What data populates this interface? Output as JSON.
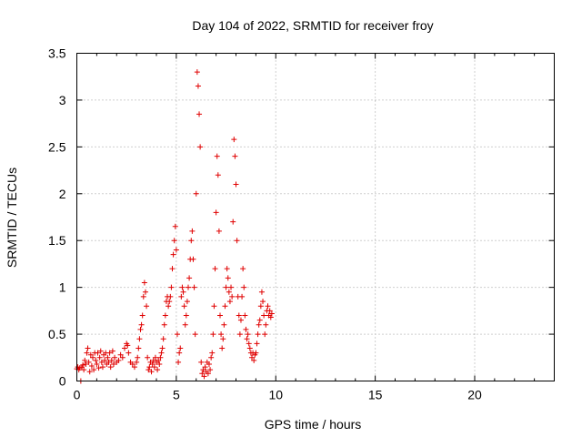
{
  "chart_data": {
    "type": "scatter",
    "title": "Day 104 of 2022, SRMTID for receiver froy",
    "xlabel": "GPS time / hours",
    "ylabel": "SRMTID / TECUs",
    "xlim": [
      0,
      24
    ],
    "ylim": [
      0,
      3.5
    ],
    "x_ticks": [
      0,
      5,
      10,
      15,
      20
    ],
    "x_tick_labels": [
      "0",
      "5",
      "10",
      "15",
      "20"
    ],
    "y_ticks": [
      0,
      0.5,
      1,
      1.5,
      2,
      2.5,
      3,
      3.5
    ],
    "y_tick_labels": [
      "0",
      "0.5",
      "1",
      "1.5",
      "2",
      "2.5",
      "3",
      "3.5"
    ],
    "grid": true,
    "marker": "+",
    "color": "#e00000",
    "series": [
      {
        "name": "SRMTID",
        "points": [
          [
            0.0,
            0.13
          ],
          [
            0.05,
            0.15
          ],
          [
            0.1,
            0.12
          ],
          [
            0.15,
            0.14
          ],
          [
            0.2,
            0.0
          ],
          [
            0.25,
            0.15
          ],
          [
            0.3,
            0.17
          ],
          [
            0.35,
            0.12
          ],
          [
            0.4,
            0.22
          ],
          [
            0.45,
            0.18
          ],
          [
            0.5,
            0.3
          ],
          [
            0.55,
            0.35
          ],
          [
            0.6,
            0.2
          ],
          [
            0.65,
            0.1
          ],
          [
            0.7,
            0.28
          ],
          [
            0.75,
            0.16
          ],
          [
            0.8,
            0.25
          ],
          [
            0.85,
            0.12
          ],
          [
            0.9,
            0.3
          ],
          [
            0.95,
            0.22
          ],
          [
            1.0,
            0.18
          ],
          [
            1.05,
            0.3
          ],
          [
            1.1,
            0.14
          ],
          [
            1.15,
            0.25
          ],
          [
            1.2,
            0.32
          ],
          [
            1.25,
            0.2
          ],
          [
            1.3,
            0.15
          ],
          [
            1.35,
            0.28
          ],
          [
            1.4,
            0.22
          ],
          [
            1.45,
            0.3
          ],
          [
            1.5,
            0.18
          ],
          [
            1.55,
            0.25
          ],
          [
            1.6,
            0.2
          ],
          [
            1.65,
            0.3
          ],
          [
            1.7,
            0.15
          ],
          [
            1.75,
            0.22
          ],
          [
            1.8,
            0.32
          ],
          [
            1.85,
            0.18
          ],
          [
            1.9,
            0.25
          ],
          [
            2.0,
            0.2
          ],
          [
            2.1,
            0.22
          ],
          [
            2.2,
            0.28
          ],
          [
            2.3,
            0.25
          ],
          [
            2.4,
            0.35
          ],
          [
            2.5,
            0.4
          ],
          [
            2.55,
            0.38
          ],
          [
            2.6,
            0.3
          ],
          [
            2.7,
            0.2
          ],
          [
            2.8,
            0.18
          ],
          [
            2.9,
            0.15
          ],
          [
            3.0,
            0.2
          ],
          [
            3.05,
            0.25
          ],
          [
            3.1,
            0.35
          ],
          [
            3.15,
            0.45
          ],
          [
            3.2,
            0.55
          ],
          [
            3.25,
            0.6
          ],
          [
            3.3,
            0.7
          ],
          [
            3.35,
            0.9
          ],
          [
            3.4,
            1.05
          ],
          [
            3.45,
            0.95
          ],
          [
            3.5,
            0.8
          ],
          [
            3.55,
            0.25
          ],
          [
            3.6,
            0.12
          ],
          [
            3.65,
            0.15
          ],
          [
            3.7,
            0.2
          ],
          [
            3.75,
            0.1
          ],
          [
            3.8,
            0.18
          ],
          [
            3.85,
            0.22
          ],
          [
            3.9,
            0.15
          ],
          [
            3.95,
            0.25
          ],
          [
            4.0,
            0.2
          ],
          [
            4.05,
            0.12
          ],
          [
            4.1,
            0.22
          ],
          [
            4.15,
            0.18
          ],
          [
            4.2,
            0.25
          ],
          [
            4.25,
            0.3
          ],
          [
            4.3,
            0.35
          ],
          [
            4.35,
            0.45
          ],
          [
            4.4,
            0.6
          ],
          [
            4.45,
            0.7
          ],
          [
            4.5,
            0.85
          ],
          [
            4.55,
            0.9
          ],
          [
            4.6,
            0.8
          ],
          [
            4.65,
            0.85
          ],
          [
            4.7,
            0.9
          ],
          [
            4.75,
            1.0
          ],
          [
            4.8,
            1.2
          ],
          [
            4.85,
            1.35
          ],
          [
            4.9,
            1.5
          ],
          [
            4.95,
            1.65
          ],
          [
            5.0,
            1.4
          ],
          [
            5.05,
            0.5
          ],
          [
            5.1,
            0.2
          ],
          [
            5.15,
            0.3
          ],
          [
            5.2,
            0.35
          ],
          [
            5.25,
            0.9
          ],
          [
            5.3,
            1.0
          ],
          [
            5.35,
            0.95
          ],
          [
            5.4,
            0.8
          ],
          [
            5.45,
            0.6
          ],
          [
            5.5,
            0.7
          ],
          [
            5.55,
            0.85
          ],
          [
            5.6,
            1.0
          ],
          [
            5.65,
            1.1
          ],
          [
            5.7,
            1.3
          ],
          [
            5.75,
            1.5
          ],
          [
            5.8,
            1.6
          ],
          [
            5.85,
            1.3
          ],
          [
            5.9,
            1.0
          ],
          [
            5.95,
            0.5
          ],
          [
            6.0,
            2.0
          ],
          [
            6.05,
            3.3
          ],
          [
            6.1,
            3.15
          ],
          [
            6.15,
            2.85
          ],
          [
            6.2,
            2.5
          ],
          [
            6.25,
            0.2
          ],
          [
            6.3,
            0.08
          ],
          [
            6.35,
            0.12
          ],
          [
            6.4,
            0.05
          ],
          [
            6.45,
            0.15
          ],
          [
            6.5,
            0.1
          ],
          [
            6.55,
            0.2
          ],
          [
            6.6,
            0.08
          ],
          [
            6.65,
            0.18
          ],
          [
            6.7,
            0.12
          ],
          [
            6.75,
            0.25
          ],
          [
            6.8,
            0.3
          ],
          [
            6.85,
            0.5
          ],
          [
            6.9,
            0.8
          ],
          [
            6.95,
            1.2
          ],
          [
            7.0,
            1.8
          ],
          [
            7.05,
            2.4
          ],
          [
            7.1,
            2.2
          ],
          [
            7.15,
            1.6
          ],
          [
            7.2,
            0.7
          ],
          [
            7.25,
            0.5
          ],
          [
            7.3,
            0.35
          ],
          [
            7.35,
            0.45
          ],
          [
            7.4,
            0.6
          ],
          [
            7.45,
            0.8
          ],
          [
            7.5,
            1.0
          ],
          [
            7.55,
            1.2
          ],
          [
            7.6,
            1.1
          ],
          [
            7.65,
            0.95
          ],
          [
            7.7,
            0.85
          ],
          [
            7.75,
            1.0
          ],
          [
            7.8,
            0.9
          ],
          [
            7.85,
            1.7
          ],
          [
            7.9,
            2.58
          ],
          [
            7.95,
            2.4
          ],
          [
            8.0,
            2.1
          ],
          [
            8.05,
            1.5
          ],
          [
            8.1,
            0.9
          ],
          [
            8.15,
            0.7
          ],
          [
            8.2,
            0.5
          ],
          [
            8.25,
            0.65
          ],
          [
            8.3,
            0.9
          ],
          [
            8.35,
            1.2
          ],
          [
            8.4,
            1.0
          ],
          [
            8.45,
            0.7
          ],
          [
            8.5,
            0.55
          ],
          [
            8.55,
            0.45
          ],
          [
            8.6,
            0.5
          ],
          [
            8.65,
            0.4
          ],
          [
            8.7,
            0.35
          ],
          [
            8.75,
            0.3
          ],
          [
            8.8,
            0.25
          ],
          [
            8.85,
            0.3
          ],
          [
            8.9,
            0.22
          ],
          [
            8.95,
            0.28
          ],
          [
            9.0,
            0.3
          ],
          [
            9.05,
            0.4
          ],
          [
            9.1,
            0.5
          ],
          [
            9.15,
            0.6
          ],
          [
            9.2,
            0.65
          ],
          [
            9.25,
            0.8
          ],
          [
            9.3,
            0.95
          ],
          [
            9.35,
            0.85
          ],
          [
            9.4,
            0.7
          ],
          [
            9.45,
            0.5
          ],
          [
            9.5,
            0.6
          ],
          [
            9.55,
            0.75
          ],
          [
            9.6,
            0.8
          ],
          [
            9.65,
            0.7
          ],
          [
            9.7,
            0.75
          ],
          [
            9.75,
            0.68
          ],
          [
            9.8,
            0.72
          ]
        ]
      }
    ]
  }
}
